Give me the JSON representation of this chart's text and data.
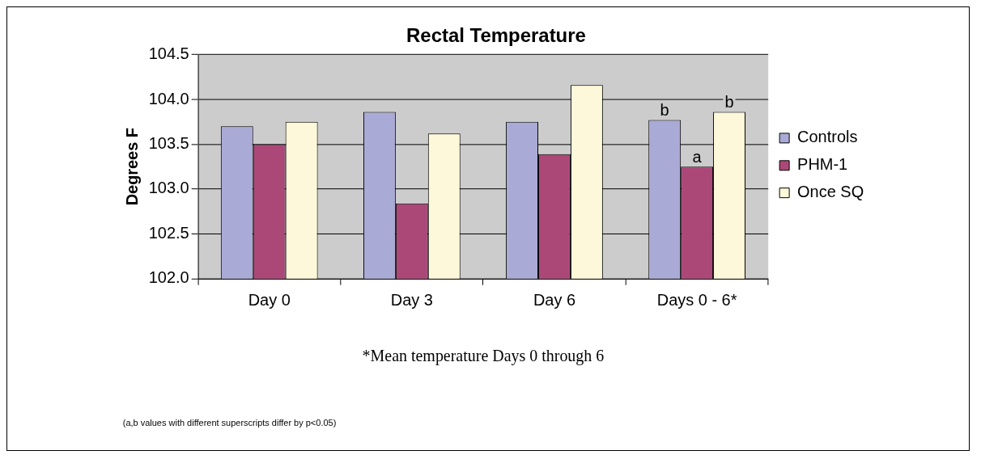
{
  "chart_data": {
    "type": "bar",
    "title": "Rectal Temperature",
    "ylabel": "Degrees F",
    "categories": [
      "Day 0",
      "Day 3",
      "Day 6",
      "Days 0 - 6*"
    ],
    "series": [
      {
        "name": "Controls",
        "color": "#aaaad6",
        "values": [
          103.7,
          103.86,
          103.75,
          103.77
        ],
        "value_labels": [
          null,
          null,
          null,
          "b"
        ]
      },
      {
        "name": "PHM-1",
        "color": "#ab4878",
        "values": [
          103.5,
          102.84,
          103.39,
          103.25
        ],
        "value_labels": [
          null,
          null,
          null,
          "a"
        ]
      },
      {
        "name": "Once SQ",
        "color": "#fdf8d9",
        "values": [
          103.75,
          103.62,
          104.16,
          103.86
        ],
        "value_labels": [
          null,
          null,
          null,
          "b"
        ]
      }
    ],
    "ylim": [
      102.0,
      104.5
    ],
    "yticks": [
      {
        "value": 102,
        "label": "102.0"
      },
      102.5,
      {
        "value": 103,
        "label": "103.0"
      },
      103.5,
      {
        "value": 104,
        "label": "104.0"
      },
      104.5
    ],
    "grid": "y",
    "legend": "right",
    "annotations": [
      "*Mean temperature Days 0 through 6",
      "(a,b values with different superscripts differ by p<0.05)"
    ]
  }
}
